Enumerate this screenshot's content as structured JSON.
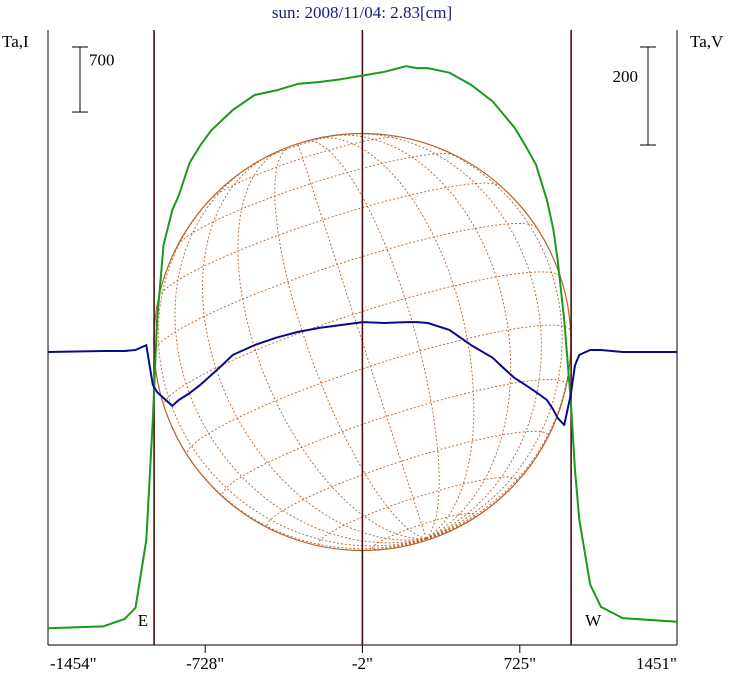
{
  "chart_data": {
    "type": "line",
    "title": "sun: 2008/11/04: 2.83[cm]",
    "y_label": "Ta,I",
    "y2_label": "Ta,V",
    "x": [
      -1454,
      -1200,
      -1100,
      -1050,
      -1000,
      -970,
      -950,
      -920,
      -880,
      -850,
      -800,
      -750,
      -700,
      -650,
      -600,
      -500,
      -400,
      -300,
      -200,
      -100,
      0,
      100,
      200,
      250,
      300,
      400,
      500,
      600,
      650,
      700,
      750,
      800,
      850,
      880,
      900,
      930,
      960,
      980,
      1000,
      1050,
      1100,
      1200,
      1451
    ],
    "series": [
      {
        "color": "#1a9a1a",
        "values": [
          0,
          20,
          100,
          220,
          950,
          2240,
          3320,
          4130,
          4500,
          4660,
          5010,
          5200,
          5360,
          5470,
          5580,
          5740,
          5790,
          5860,
          5880,
          5910,
          5950,
          5990,
          6050,
          6030,
          6030,
          5980,
          5850,
          5670,
          5530,
          5390,
          5200,
          4990,
          4610,
          4290,
          3960,
          3320,
          2460,
          1700,
          1170,
          470,
          230,
          110,
          70
        ]
      },
      {
        "color": "#0a0a8c",
        "axis": "y2",
        "values": [
          0,
          2,
          2,
          4,
          14,
          -67,
          -82,
          -94,
          -110,
          -98,
          -84,
          -67,
          -47,
          -27,
          -6,
          14,
          29,
          41,
          49,
          55,
          61,
          59,
          61,
          61,
          59,
          45,
          14,
          -12,
          -33,
          -53,
          -67,
          -82,
          -98,
          -118,
          -135,
          -149,
          -88,
          -27,
          -6,
          4,
          4,
          0,
          0
        ]
      }
    ],
    "xlim": [
      -1454,
      1451
    ],
    "xticks": [
      {
        "value": -1454,
        "label": "-1454\""
      },
      {
        "value": -728,
        "label": "-728\""
      },
      {
        "value": -2,
        "label": "-2\""
      },
      {
        "value": 725,
        "label": "725\""
      },
      {
        "value": 1451,
        "label": "1451\""
      }
    ],
    "ylim": [
      -180,
      6440
    ],
    "y2lim": [
      -598,
      657
    ],
    "y_scale_bar": 700,
    "y2_scale_bar": 200,
    "vlines": [
      -964,
      -2,
      962
    ],
    "annotations": [
      {
        "x": -964,
        "text": "E"
      },
      {
        "x": 962,
        "text": "W"
      }
    ]
  }
}
